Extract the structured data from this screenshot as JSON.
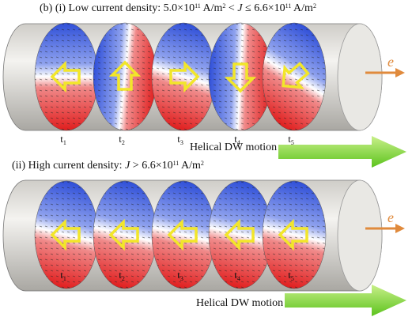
{
  "panels": [
    {
      "title": [
        {
          "text": "(b) (i) Low current density: 5.0×10",
          "style": "normal"
        },
        {
          "text": "11",
          "style": "sup"
        },
        {
          "text": " A/m",
          "style": "normal"
        },
        {
          "text": "2",
          "style": "sup"
        },
        {
          "text": " < ",
          "style": "normal"
        },
        {
          "text": "J",
          "style": "italic"
        },
        {
          "text": " ≤ 6.6×10",
          "style": "normal"
        },
        {
          "text": "11",
          "style": "sup"
        },
        {
          "text": " A/m",
          "style": "normal"
        },
        {
          "text": "2",
          "style": "sup"
        }
      ],
      "time_labels": [
        {
          "base": "t",
          "sub": "1"
        },
        {
          "base": "t",
          "sub": "2"
        },
        {
          "base": "t",
          "sub": "3"
        },
        {
          "base": "t",
          "sub": "4"
        },
        {
          "base": "t",
          "sub": "5"
        }
      ],
      "motion_label": "Helical DW motion",
      "electron_label": "e"
    },
    {
      "title": [
        {
          "text": "(ii) High current density: ",
          "style": "normal"
        },
        {
          "text": "J",
          "style": "italic"
        },
        {
          "text": " > 6.6×10",
          "style": "normal"
        },
        {
          "text": "11",
          "style": "sup"
        },
        {
          "text": " A/m",
          "style": "normal"
        },
        {
          "text": "2",
          "style": "sup"
        }
      ],
      "time_labels": [
        {
          "base": "t",
          "sub": "1"
        },
        {
          "base": "t",
          "sub": "2"
        },
        {
          "base": "t",
          "sub": "3"
        },
        {
          "base": "t",
          "sub": "4"
        },
        {
          "base": "t",
          "sub": "5"
        }
      ],
      "motion_label": "Helical DW motion",
      "electron_label": "e"
    }
  ]
}
